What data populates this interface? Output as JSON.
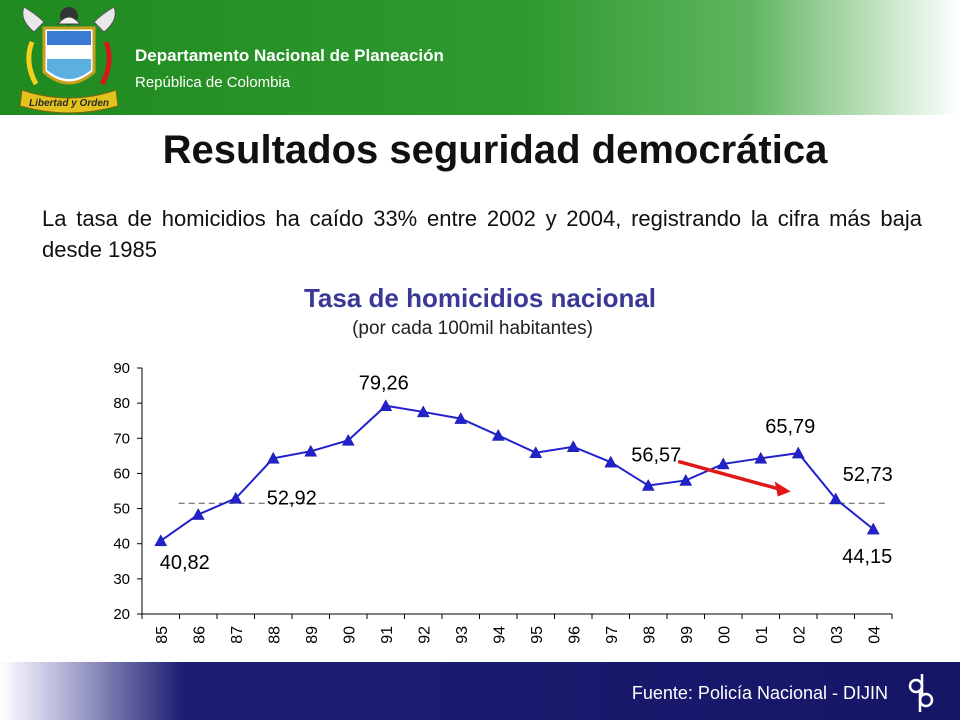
{
  "header": {
    "org_name": "Departamento Nacional de Planeación",
    "org_sub": "República de Colombia",
    "logo_motto": "Libertad y Orden"
  },
  "slide": {
    "title": "Resultados seguridad democrática",
    "intro": "La tasa de homicidios ha caído 33% entre 2002 y 2004, registrando la cifra más baja desde 1985"
  },
  "footer": {
    "source": "Fuente: Policía Nacional - DIJIN"
  },
  "colors": {
    "header_green": "#2a962a",
    "footer_navy": "#161668",
    "series": "#2222cc",
    "arrow": "#e01818",
    "title_blue": "#3a3a96"
  },
  "chart_data": {
    "type": "line",
    "title": "Tasa de homicidios nacional",
    "subtitle": "(por cada 100mil habitantes)",
    "categories": [
      "85",
      "86",
      "87",
      "88",
      "89",
      "90",
      "91",
      "92",
      "93",
      "94",
      "95",
      "96",
      "97",
      "98",
      "99",
      "00",
      "01",
      "02",
      "03",
      "04"
    ],
    "series": [
      {
        "values": [
          40.82,
          48.3,
          52.92,
          64.3,
          66.3,
          69.4,
          79.26,
          77.5,
          75.6,
          70.8,
          65.9,
          67.6,
          63.2,
          56.57,
          58.0,
          62.7,
          64.3,
          65.79,
          52.73,
          44.15
        ]
      }
    ],
    "ylim": [
      20,
      90
    ],
    "yticks": [
      20,
      30,
      40,
      50,
      60,
      70,
      80,
      90
    ],
    "reference_line": 51.5,
    "data_labels": [
      {
        "index": 0,
        "text": "40,82"
      },
      {
        "index": 2,
        "text": "52,92"
      },
      {
        "index": 6,
        "text": "79,26"
      },
      {
        "index": 13,
        "text": "56,57"
      },
      {
        "index": 17,
        "text": "65,79"
      },
      {
        "index": 18,
        "text": "52,73"
      },
      {
        "index": 19,
        "text": "44,15"
      }
    ],
    "trend_arrow": {
      "from": 13.8,
      "to": 16.8,
      "direction": "down"
    },
    "grid": false,
    "legend": "none"
  }
}
